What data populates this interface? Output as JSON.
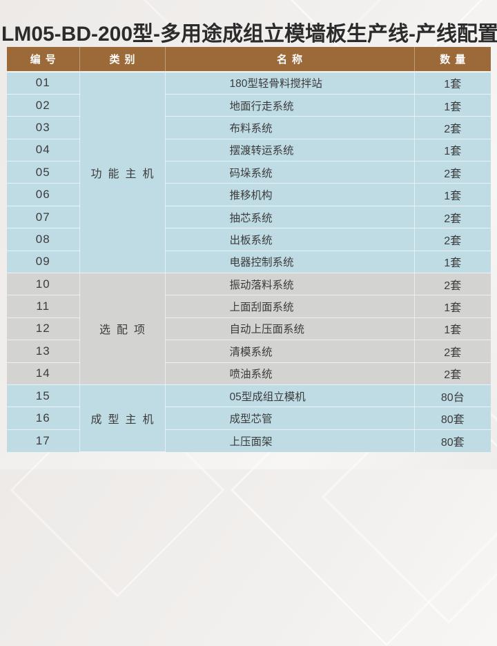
{
  "title": "LM05-BD-200型-多用途成组立模墙板生产线-产线配置",
  "colors": {
    "header_bg": "#9c6a39",
    "row_blue": "#bfdce4",
    "row_gray": "#d3d3d2",
    "header_text": "#fdfdfd",
    "cell_text": "#3b3b3b",
    "title_text": "#2b2b2b"
  },
  "table": {
    "headers": [
      "编号",
      "类别",
      "名称",
      "数量"
    ],
    "groups": [
      {
        "category": "功能主机",
        "rows": [
          {
            "no": "01",
            "name": "180型轻骨料搅拌站",
            "qty": "1套"
          },
          {
            "no": "02",
            "name": "地面行走系统",
            "qty": "1套"
          },
          {
            "no": "03",
            "name": "布料系统",
            "qty": "2套"
          },
          {
            "no": "04",
            "name": "摆渡转运系统",
            "qty": "1套"
          },
          {
            "no": "05",
            "name": "码垛系统",
            "qty": "2套"
          },
          {
            "no": "06",
            "name": "推移机构",
            "qty": "1套"
          },
          {
            "no": "07",
            "name": "抽芯系统",
            "qty": "2套"
          },
          {
            "no": "08",
            "name": "出板系统",
            "qty": "2套"
          },
          {
            "no": "09",
            "name": "电器控制系统",
            "qty": "1套"
          }
        ]
      },
      {
        "category": "选配项",
        "rows": [
          {
            "no": "10",
            "name": "振动落料系统",
            "qty": "2套"
          },
          {
            "no": "11",
            "name": "上面刮面系统",
            "qty": "1套"
          },
          {
            "no": "12",
            "name": "自动上压面系统",
            "qty": "1套"
          },
          {
            "no": "13",
            "name": "清模系统",
            "qty": "2套"
          },
          {
            "no": "14",
            "name": "喷油系统",
            "qty": "2套"
          }
        ]
      },
      {
        "category": "成型主机",
        "rows": [
          {
            "no": "15",
            "name": "05型成组立模机",
            "qty": "80台"
          },
          {
            "no": "16",
            "name": "成型芯管",
            "qty": "80套"
          },
          {
            "no": "17",
            "name": "上压面架",
            "qty": "80套"
          }
        ]
      }
    ]
  }
}
